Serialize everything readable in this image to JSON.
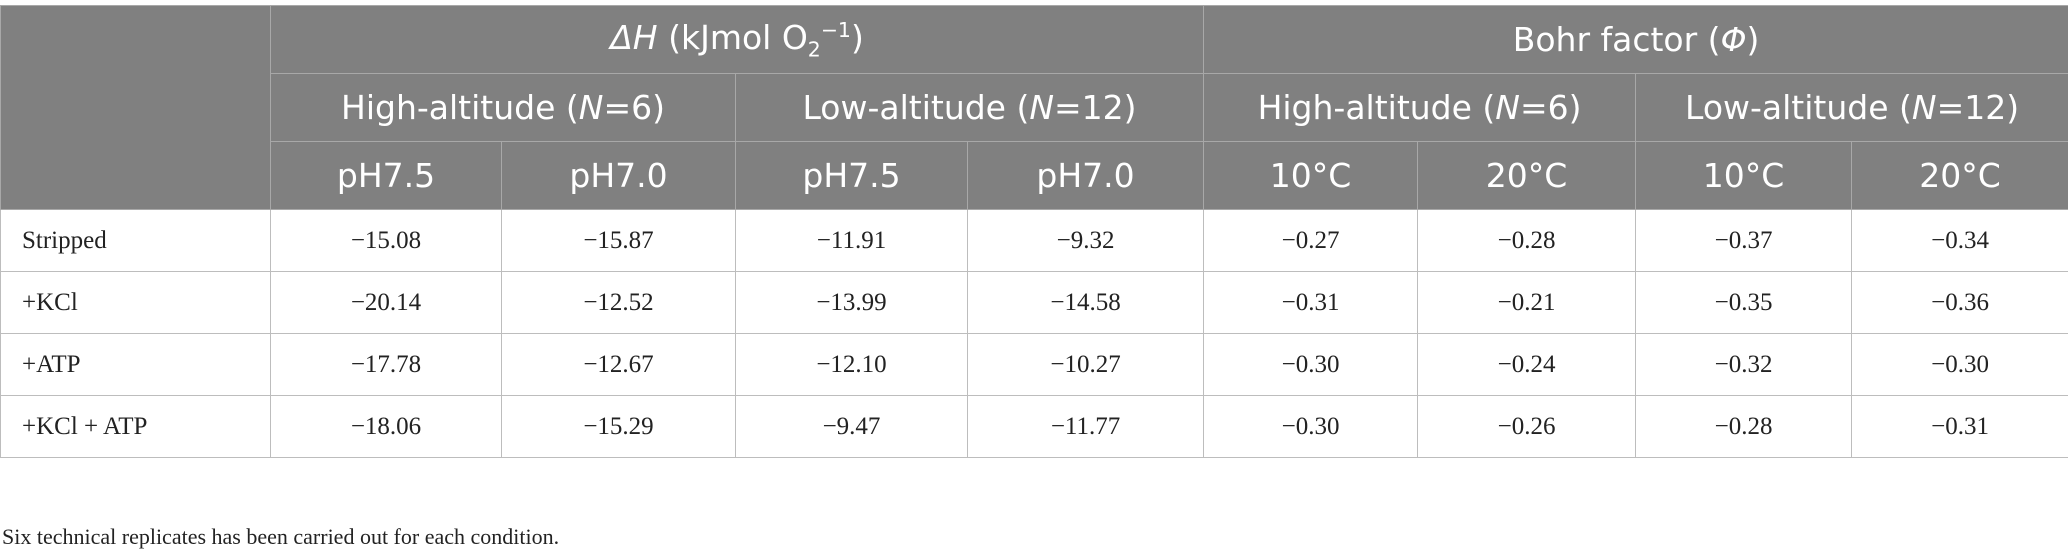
{
  "header": {
    "group_dh_symbol": "ΔH",
    "group_dh_unit_prefix": "(kJmol O",
    "group_dh_unit_sub": "2",
    "group_dh_unit_sup": "−1",
    "group_dh_unit_suffix": ")",
    "group_bohr_prefix": "Bohr factor (",
    "group_bohr_symbol": "Φ",
    "group_bohr_suffix": ")",
    "high_altitude_prefix": "High-altitude (",
    "high_altitude_n": "N",
    "high_altitude_suffix": "=6)",
    "low_altitude_prefix": "Low-altitude (",
    "low_altitude_n": "N",
    "low_altitude_suffix": "=12)",
    "leaf_columns": [
      "pH7.5",
      "pH7.0",
      "pH7.5",
      "pH7.0",
      "10°C",
      "20°C",
      "10°C",
      "20°C"
    ]
  },
  "rows": [
    {
      "label": "Stripped",
      "values": [
        "−15.08",
        "−15.87",
        "−11.91",
        "−9.32",
        "−0.27",
        "−0.28",
        "−0.37",
        "−0.34"
      ]
    },
    {
      "label": "+KCl",
      "values": [
        "−20.14",
        "−12.52",
        "−13.99",
        "−14.58",
        "−0.31",
        "−0.21",
        "−0.35",
        "−0.36"
      ]
    },
    {
      "label": "+ATP",
      "values": [
        "−17.78",
        "−12.67",
        "−12.10",
        "−10.27",
        "−0.30",
        "−0.24",
        "−0.32",
        "−0.30"
      ]
    },
    {
      "label": "+KCl + ATP",
      "values": [
        "−18.06",
        "−15.29",
        "−9.47",
        "−11.77",
        "−0.30",
        "−0.26",
        "−0.28",
        "−0.31"
      ]
    }
  ],
  "footnote": "Six technical replicates has been carried out for each condition.",
  "colors": {
    "header_background": "#808080",
    "header_text": "#ffffff",
    "grid_line": "#bdbdbd",
    "body_text": "#222222"
  }
}
